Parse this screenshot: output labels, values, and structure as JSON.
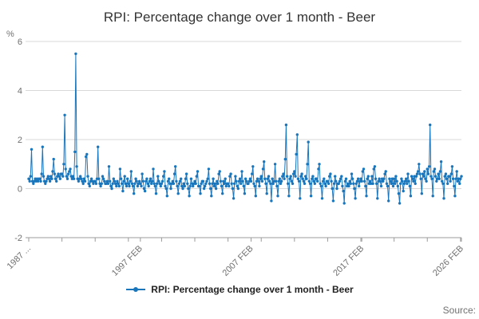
{
  "header": {
    "title": "RPI: Percentage change over 1 month - Beer"
  },
  "legend": {
    "label": "RPI: Percentage change over 1 month - Beer"
  },
  "footer": {
    "source": "Source:"
  },
  "colors": {
    "series": "#1976bd",
    "grid": "#d9d9d9",
    "axis": "#9b9b9b",
    "text": "#333333",
    "muted": "#707070"
  },
  "chart_data": {
    "type": "line",
    "title": "RPI: Percentage change over 1 month - Beer",
    "xlabel": "",
    "ylabel": "%",
    "ylim": [
      -2,
      6
    ],
    "y_ticks": [
      -2,
      0,
      2,
      4,
      6
    ],
    "grid": true,
    "legend_position": "bottom",
    "start": "1987-01",
    "frequency": "monthly",
    "x_tick_labels": [
      "1987 ...",
      "1997 FEB",
      "2007 FEB",
      "2017 FEB",
      "2026 FEB"
    ],
    "x_tick_indices": [
      0,
      121,
      241,
      361,
      469
    ],
    "series": [
      {
        "name": "RPI: Percentage change over 1 month - Beer",
        "values": [
          0.4,
          0.3,
          0.5,
          1.6,
          0.3,
          0.2,
          0.3,
          0.4,
          0.3,
          0.4,
          0.3,
          0.4,
          0.4,
          0.3,
          0.6,
          1.7,
          0.5,
          0.3,
          0.2,
          0.3,
          0.4,
          0.5,
          0.4,
          0.3,
          0.5,
          0.4,
          0.7,
          1.2,
          0.6,
          0.4,
          0.3,
          0.5,
          0.6,
          0.5,
          0.4,
          0.6,
          0.6,
          0.5,
          1.0,
          3.0,
          0.8,
          0.5,
          0.4,
          0.6,
          0.7,
          0.8,
          0.5,
          0.4,
          0.5,
          0.4,
          1.5,
          5.5,
          0.9,
          0.4,
          0.3,
          0.4,
          0.5,
          0.4,
          0.3,
          0.2,
          0.4,
          0.3,
          1.3,
          1.4,
          0.5,
          0.2,
          0.1,
          0.3,
          0.4,
          0.3,
          0.2,
          0.3,
          0.3,
          0.2,
          0.4,
          1.7,
          0.4,
          0.2,
          0.1,
          0.2,
          0.5,
          0.4,
          0.3,
          0.2,
          0.2,
          0.3,
          0.2,
          0.9,
          0.3,
          0.1,
          0.0,
          0.2,
          0.4,
          0.3,
          0.2,
          0.1,
          0.3,
          0.2,
          0.1,
          0.8,
          0.4,
          0.2,
          -0.1,
          0.3,
          0.5,
          0.2,
          0.1,
          0.4,
          0.2,
          0.1,
          0.3,
          0.7,
          0.2,
          0.1,
          -0.2,
          0.2,
          0.4,
          0.3,
          0.1,
          0.2,
          0.3,
          0.2,
          0.1,
          0.6,
          0.3,
          0.0,
          -0.1,
          0.3,
          0.4,
          0.2,
          0.1,
          0.3,
          0.4,
          0.2,
          0.3,
          0.8,
          0.2,
          0.1,
          -0.2,
          0.2,
          0.5,
          0.3,
          0.2,
          0.1,
          0.2,
          0.3,
          0.5,
          0.7,
          0.1,
          0.0,
          -0.3,
          0.3,
          0.4,
          0.2,
          0.0,
          0.2,
          0.3,
          0.2,
          0.6,
          0.9,
          0.3,
          0.1,
          -0.2,
          0.2,
          0.3,
          0.4,
          0.1,
          0.0,
          0.2,
          0.1,
          0.4,
          0.6,
          0.2,
          0.0,
          -0.3,
          0.1,
          0.4,
          0.2,
          0.1,
          0.2,
          0.3,
          0.2,
          0.5,
          0.7,
          0.1,
          0.1,
          -0.2,
          0.2,
          0.3,
          0.3,
          0.0,
          0.1,
          0.2,
          0.3,
          0.4,
          0.8,
          0.2,
          0.0,
          -0.3,
          0.2,
          0.4,
          0.1,
          0.2,
          0.0,
          0.3,
          0.2,
          0.6,
          0.7,
          0.3,
          0.1,
          -0.2,
          0.3,
          0.2,
          0.4,
          0.1,
          0.2,
          0.2,
          0.1,
          0.5,
          0.6,
          0.2,
          0.0,
          -0.4,
          0.2,
          0.5,
          0.3,
          0.1,
          0.0,
          0.3,
          0.4,
          0.2,
          0.7,
          0.3,
          0.1,
          -0.2,
          0.4,
          0.3,
          0.2,
          0.2,
          0.3,
          0.4,
          0.3,
          0.6,
          0.9,
          0.2,
          0.1,
          -0.3,
          0.3,
          0.4,
          0.3,
          0.1,
          0.4,
          0.5,
          0.3,
          0.8,
          1.1,
          0.4,
          0.2,
          -0.2,
          0.4,
          0.5,
          0.3,
          0.2,
          -0.5,
          0.4,
          0.2,
          0.3,
          1.0,
          0.3,
          0.1,
          -0.3,
          0.3,
          0.4,
          0.2,
          0.3,
          0.5,
          0.6,
          0.4,
          1.2,
          2.6,
          0.5,
          0.2,
          -0.3,
          0.4,
          0.5,
          0.3,
          0.2,
          0.6,
          0.7,
          0.5,
          1.4,
          2.2,
          0.4,
          0.3,
          -0.4,
          0.5,
          0.6,
          0.4,
          0.3,
          0.2,
          0.5,
          0.4,
          1.0,
          1.9,
          0.3,
          0.2,
          -0.3,
          0.4,
          0.5,
          0.3,
          0.2,
          0.4,
          0.4,
          0.3,
          0.8,
          1.0,
          0.2,
          0.1,
          -0.4,
          0.3,
          0.4,
          0.2,
          0.1,
          0.3,
          0.3,
          0.2,
          0.5,
          0.6,
          0.3,
          0.0,
          -0.5,
          0.2,
          0.5,
          0.3,
          0.0,
          0.2,
          0.2,
          0.3,
          0.4,
          0.5,
          0.1,
          -0.1,
          -0.6,
          0.3,
          0.4,
          0.1,
          0.2,
          0.1,
          0.3,
          0.2,
          0.6,
          0.4,
          0.2,
          0.0,
          -0.4,
          0.2,
          0.3,
          0.4,
          0.1,
          0.3,
          0.4,
          0.3,
          0.7,
          0.8,
          0.3,
          0.1,
          -0.3,
          0.4,
          0.5,
          0.2,
          0.3,
          0.2,
          0.5,
          0.2,
          0.8,
          0.9,
          0.4,
          0.2,
          -0.4,
          0.3,
          0.4,
          0.3,
          0.1,
          0.4,
          0.3,
          0.4,
          0.6,
          0.7,
          0.2,
          0.1,
          -0.5,
          0.4,
          0.3,
          0.2,
          0.4,
          0.1,
          0.4,
          0.2,
          0.5,
          0.3,
          0.1,
          -0.2,
          -0.6,
          0.2,
          0.4,
          0.3,
          -0.1,
          0.2,
          0.3,
          0.4,
          0.2,
          0.6,
          0.3,
          0.1,
          -0.3,
          0.5,
          0.4,
          0.3,
          0.5,
          0.2,
          0.5,
          0.6,
          0.7,
          1.0,
          0.6,
          0.4,
          -0.2,
          0.6,
          0.5,
          0.7,
          0.4,
          0.3,
          0.8,
          0.6,
          0.9,
          2.6,
          0.5,
          0.4,
          -0.3,
          0.7,
          0.8,
          0.5,
          0.3,
          0.4,
          0.6,
          0.4,
          0.7,
          1.1,
          0.3,
          0.2,
          -0.4,
          0.5,
          0.6,
          0.4,
          0.2,
          0.5,
          0.5,
          0.3,
          0.6,
          0.9,
          0.4,
          0.1,
          -0.3,
          0.4,
          0.7,
          0.3,
          0.4,
          0.2,
          0.4,
          0.5
        ]
      }
    ]
  }
}
